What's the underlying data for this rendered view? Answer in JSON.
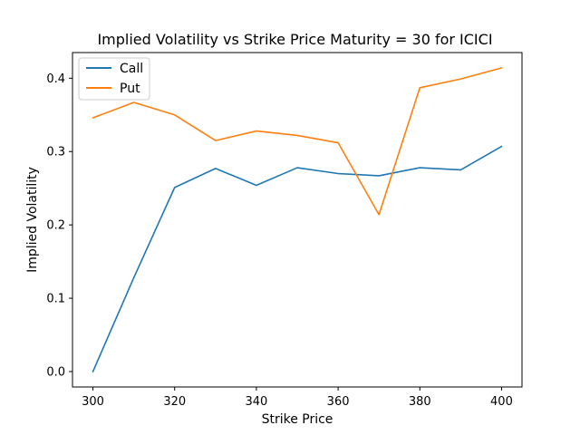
{
  "chart_data": {
    "type": "line",
    "title": "Implied Volatility vs Strike Price Maturity = 30 for ICICI",
    "xlabel": "Strike Price",
    "ylabel": "Implied Volatility",
    "xlim": [
      295,
      405
    ],
    "ylim": [
      -0.021,
      0.435
    ],
    "x_ticks": [
      300,
      320,
      340,
      360,
      380,
      400
    ],
    "y_ticks": [
      0.0,
      0.1,
      0.2,
      0.3,
      0.4
    ],
    "x_tick_labels": [
      "300",
      "320",
      "340",
      "360",
      "380",
      "400"
    ],
    "y_tick_labels": [
      "0.0",
      "0.1",
      "0.2",
      "0.3",
      "0.4"
    ],
    "grid": false,
    "legend_position": "top-left",
    "x": [
      300,
      310,
      320,
      330,
      340,
      350,
      360,
      370,
      380,
      390,
      400
    ],
    "series": [
      {
        "name": "Call",
        "color": "#1f77b4",
        "values": [
          0.0,
          0.128,
          0.251,
          0.277,
          0.254,
          0.278,
          0.27,
          0.267,
          0.278,
          0.275,
          0.307
        ]
      },
      {
        "name": "Put",
        "color": "#ff7f0e",
        "values": [
          0.346,
          0.367,
          0.35,
          0.315,
          0.328,
          0.322,
          0.312,
          0.214,
          0.387,
          0.399,
          0.414
        ]
      }
    ]
  }
}
